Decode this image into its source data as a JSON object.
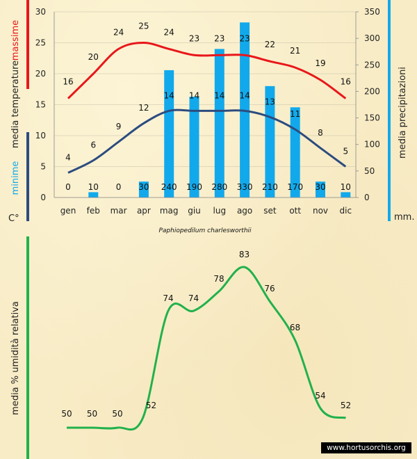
{
  "colors": {
    "max_line": "#e8171a",
    "min_line": "#2c4c7f",
    "bars": "#12a9ec",
    "humidity_line": "#22b14c",
    "grid": "#c8c0a8"
  },
  "chart_data": [
    {
      "type": "bar+line",
      "title": "Paphiopedilum charlesworthii",
      "categories": [
        "gen",
        "feb",
        "mar",
        "apr",
        "mag",
        "giu",
        "lug",
        "ago",
        "set",
        "ott",
        "nov",
        "dic"
      ],
      "left_axis": {
        "ylim": [
          0,
          30
        ],
        "ticks": [
          "0",
          "5",
          "10",
          "15",
          "20",
          "25",
          "30"
        ]
      },
      "right_axis": {
        "ylim": [
          0,
          350
        ],
        "ticks": [
          "0",
          "50",
          "100",
          "150",
          "200",
          "250",
          "300",
          "350"
        ]
      },
      "series": [
        {
          "name": "massime",
          "axis": "left",
          "type": "line",
          "values": [
            16,
            20,
            24,
            25,
            24,
            23,
            23,
            23,
            22,
            21,
            19,
            16
          ]
        },
        {
          "name": "minime",
          "axis": "left",
          "type": "line",
          "values": [
            4,
            6,
            9,
            12,
            14,
            14,
            14,
            14,
            13,
            11,
            8,
            5
          ]
        },
        {
          "name": "precipitazioni",
          "axis": "right",
          "type": "bar",
          "values": [
            0,
            10,
            0,
            30,
            240,
            190,
            280,
            330,
            210,
            170,
            30,
            10
          ]
        }
      ],
      "labels": {
        "left_top": "massime",
        "left_mid": "media  temperature",
        "left_bottom": "minime",
        "left_unit": "C°",
        "right_title": "media  precipitazioni",
        "right_unit": "mm."
      }
    },
    {
      "type": "line",
      "categories": [
        "gen",
        "feb",
        "mar",
        "apr",
        "mag",
        "giu",
        "lug",
        "ago",
        "set",
        "ott",
        "nov",
        "dic"
      ],
      "series": [
        {
          "name": "umidità relativa",
          "values": [
            50,
            50,
            50,
            52,
            74,
            74,
            78,
            83,
            76,
            68,
            54,
            52
          ]
        }
      ],
      "ylabel": "media  %  umidità relativa"
    }
  ],
  "watermark": "www.hortusorchis.org"
}
